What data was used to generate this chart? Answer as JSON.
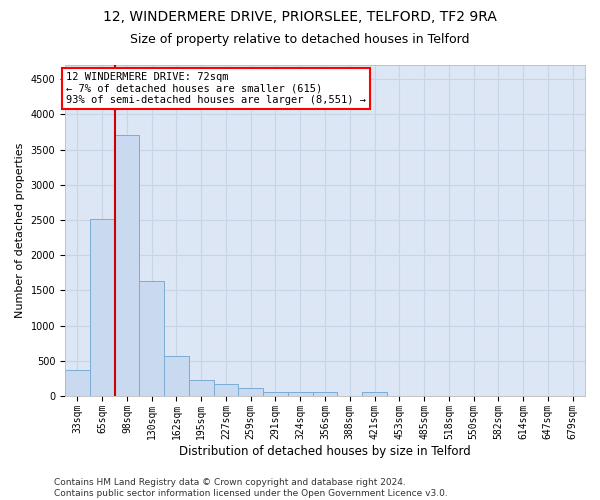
{
  "title1": "12, WINDERMERE DRIVE, PRIORSLEE, TELFORD, TF2 9RA",
  "title2": "Size of property relative to detached houses in Telford",
  "xlabel": "Distribution of detached houses by size in Telford",
  "ylabel": "Number of detached properties",
  "categories": [
    "33sqm",
    "65sqm",
    "98sqm",
    "130sqm",
    "162sqm",
    "195sqm",
    "227sqm",
    "259sqm",
    "291sqm",
    "324sqm",
    "356sqm",
    "388sqm",
    "421sqm",
    "453sqm",
    "485sqm",
    "518sqm",
    "550sqm",
    "582sqm",
    "614sqm",
    "647sqm",
    "679sqm"
  ],
  "values": [
    370,
    2520,
    3700,
    1640,
    570,
    235,
    165,
    110,
    60,
    55,
    55,
    0,
    55,
    0,
    0,
    0,
    0,
    0,
    0,
    0,
    0
  ],
  "bar_color": "#c9d9f0",
  "bar_edge_color": "#7aacd4",
  "red_line_x": 1.5,
  "annotation_box_text": "12 WINDERMERE DRIVE: 72sqm\n← 7% of detached houses are smaller (615)\n93% of semi-detached houses are larger (8,551) →",
  "ylim": [
    0,
    4700
  ],
  "yticks": [
    0,
    500,
    1000,
    1500,
    2000,
    2500,
    3000,
    3500,
    4000,
    4500
  ],
  "grid_color": "#c8d4e8",
  "bg_color": "#dce6f5",
  "red_line_color": "#cc0000",
  "footer_line1": "Contains HM Land Registry data © Crown copyright and database right 2024.",
  "footer_line2": "Contains public sector information licensed under the Open Government Licence v3.0.",
  "title1_fontsize": 10,
  "title2_fontsize": 9,
  "xlabel_fontsize": 8.5,
  "ylabel_fontsize": 8,
  "tick_fontsize": 7,
  "annotation_fontsize": 7.5,
  "footer_fontsize": 6.5
}
